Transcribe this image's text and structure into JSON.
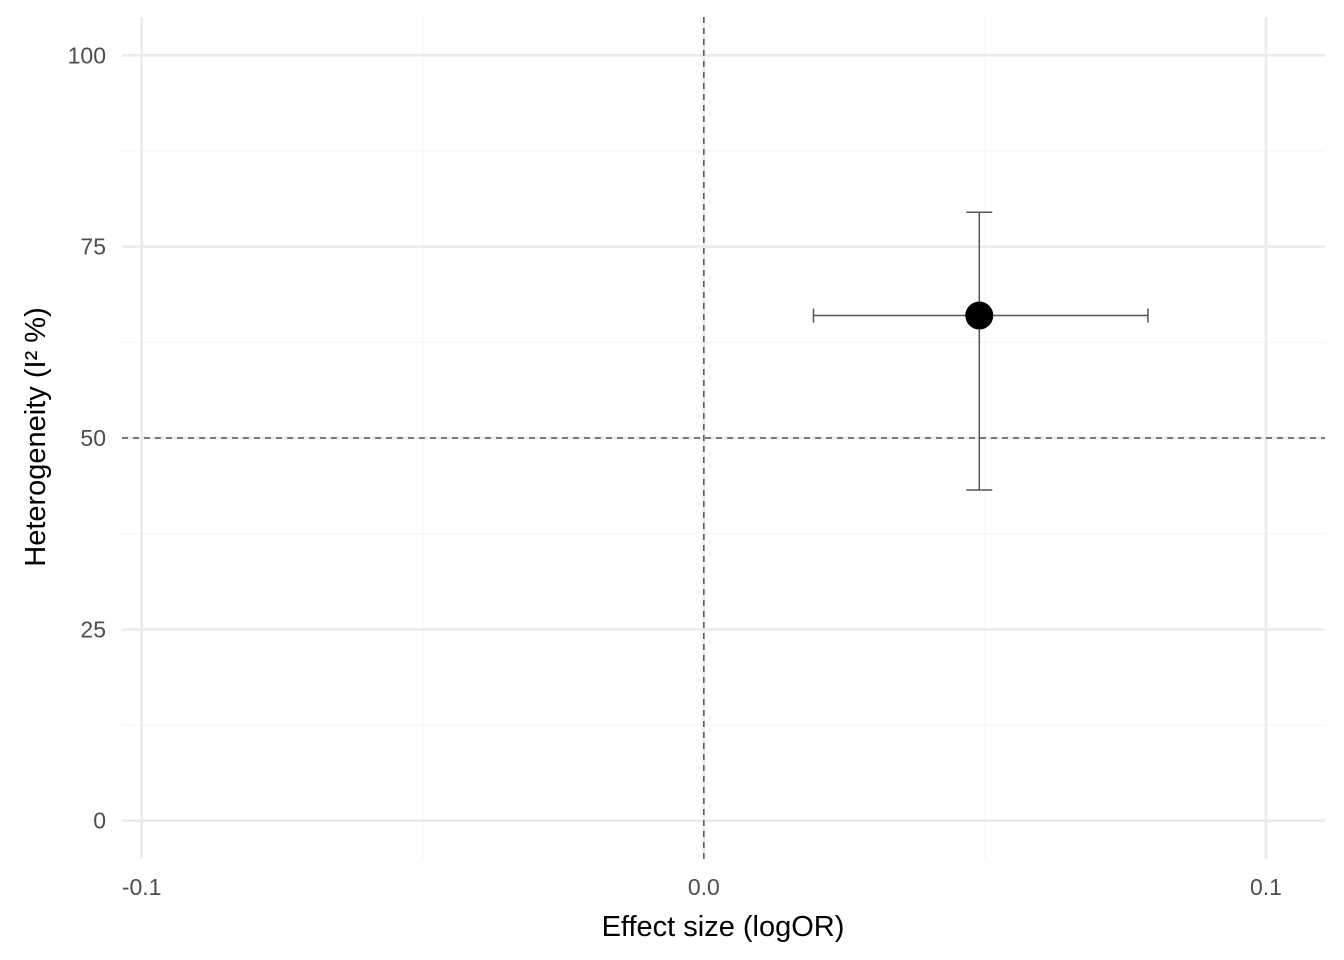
{
  "chart_data": {
    "type": "scatter",
    "title": "",
    "xlabel": "Effect size (logOR)",
    "ylabel": "Heterogeneity (I² %)",
    "xlim": [
      -0.1035,
      0.1105
    ],
    "ylim": [
      -5,
      105
    ],
    "x_ticks": [
      {
        "value": -0.1,
        "label": "-0.1"
      },
      {
        "value": 0.0,
        "label": "0.0"
      },
      {
        "value": 0.1,
        "label": "0.1"
      }
    ],
    "x_minor_ticks": [
      -0.05,
      0.05
    ],
    "y_ticks": [
      {
        "value": 0,
        "label": "0"
      },
      {
        "value": 25,
        "label": "25"
      },
      {
        "value": 50,
        "label": "50"
      },
      {
        "value": 75,
        "label": "75"
      },
      {
        "value": 100,
        "label": "100"
      }
    ],
    "y_minor_ticks": [
      12.5,
      37.5,
      62.5,
      87.5
    ],
    "reference_lines": [
      {
        "axis": "x",
        "value": 0,
        "style": "dashed"
      },
      {
        "axis": "y",
        "value": 50,
        "style": "dashed"
      }
    ],
    "points": [
      {
        "x": 0.049,
        "y": 66,
        "x_low": 0.0195,
        "x_high": 0.079,
        "y_low": 43.2,
        "y_high": 79.5
      }
    ],
    "grid": true,
    "legend": "none",
    "colors": {
      "grid_major": "#ebebeb",
      "grid_minor": "#f4f4f4",
      "reference": "#555555",
      "errorbar": "#555555",
      "point": "#000000",
      "tick_text": "#4d4d4d",
      "axis_text": "#000000"
    }
  }
}
